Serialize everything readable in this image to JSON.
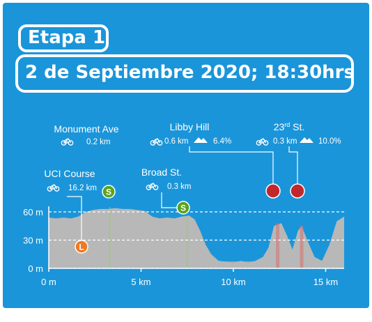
{
  "header": {
    "title": "Etapa 1",
    "date": "2 de Septiembre 2020; 18:30hrs"
  },
  "colors": {
    "background": "#1b95d9",
    "profile_fill": "#b8b8b8",
    "sprint_green": "#5aa31f",
    "climb_red": "#c1282d",
    "start_orange": "#f07a21"
  },
  "chart_data": {
    "type": "area",
    "xlabel": "",
    "ylabel": "",
    "xlim": [
      0,
      16
    ],
    "ylim": [
      0,
      70
    ],
    "x_ticks": [
      "0 m",
      "5 km",
      "10 km",
      "15 km"
    ],
    "x_tick_values": [
      0,
      5,
      10,
      15
    ],
    "y_ticks": [
      "0 m",
      "30 m",
      "60 m"
    ],
    "y_tick_values": [
      0,
      30,
      60
    ],
    "grid": "horizontal dashed at 0, 30, 60 m",
    "profile": {
      "x": [
        0,
        0.4,
        0.8,
        1.2,
        1.6,
        2.0,
        2.4,
        2.8,
        3.2,
        3.6,
        4.0,
        4.4,
        4.8,
        5.2,
        5.6,
        6.0,
        6.4,
        6.8,
        7.2,
        7.6,
        7.9,
        8.2,
        8.5,
        8.8,
        9.2,
        9.6,
        10.0,
        10.4,
        10.8,
        11.2,
        11.6,
        11.9,
        12.2,
        12.6,
        12.9,
        13.2,
        13.5,
        13.7,
        14.0,
        14.4,
        14.8,
        15.2,
        15.6,
        16.0
      ],
      "elevation": [
        54,
        53,
        54,
        53,
        55,
        60,
        62,
        63,
        63,
        64,
        63,
        63,
        62,
        61,
        55,
        53,
        54,
        53,
        55,
        56,
        52,
        40,
        25,
        15,
        8,
        7,
        6,
        8,
        6,
        8,
        12,
        22,
        45,
        48,
        35,
        20,
        40,
        45,
        30,
        12,
        8,
        25,
        50,
        55
      ]
    },
    "markers": [
      {
        "type": "start",
        "symbol": "L",
        "x": 1.8,
        "elevation": 26,
        "name": "UCI Course",
        "distance": "16.2 km"
      },
      {
        "type": "sprint",
        "symbol": "S",
        "x": 3.3,
        "elevation": 65,
        "name": "Monument Ave",
        "distance": "0.2 km"
      },
      {
        "type": "sprint",
        "symbol": "S",
        "x": 7.5,
        "elevation": 56,
        "name": "Broad St.",
        "distance": "0.3 km"
      },
      {
        "type": "climb",
        "x": 12.4,
        "elevation": 48,
        "name": "Libby Hill",
        "distance": "0.6 km",
        "gradient": "6.4%"
      },
      {
        "type": "climb",
        "x": 13.7,
        "elevation": 45,
        "name_main": "23",
        "name_sup": "rd",
        "name_tail": " St.",
        "distance": "0.3 km",
        "gradient": "10.0%"
      }
    ]
  }
}
